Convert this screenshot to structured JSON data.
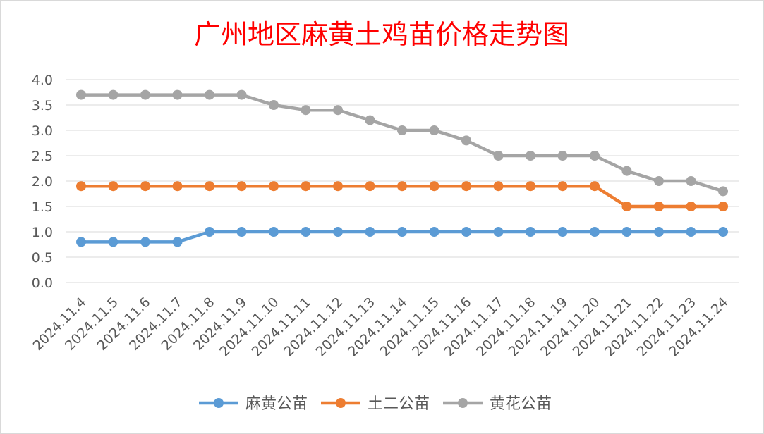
{
  "chart_data": {
    "type": "line",
    "title": "广州地区麻黄土鸡苗价格走势图",
    "title_color": "#ff0000",
    "categories": [
      "2024.11.4",
      "2024.11.5",
      "2024.11.6",
      "2024.11.7",
      "2024.11.8",
      "2024.11.9",
      "2024.11.10",
      "2024.11.11",
      "2024.11.12",
      "2024.11.13",
      "2024.11.14",
      "2024.11.15",
      "2024.11.16",
      "2024.11.17",
      "2024.11.18",
      "2024.11.19",
      "2024.11.20",
      "2024.11.21",
      "2024.11.22",
      "2024.11.23",
      "2024.11.24"
    ],
    "series": [
      {
        "name": "麻黄公苗",
        "color": "#5b9bd5",
        "values": [
          0.8,
          0.8,
          0.8,
          0.8,
          1.0,
          1.0,
          1.0,
          1.0,
          1.0,
          1.0,
          1.0,
          1.0,
          1.0,
          1.0,
          1.0,
          1.0,
          1.0,
          1.0,
          1.0,
          1.0,
          1.0
        ]
      },
      {
        "name": "土二公苗",
        "color": "#ed7d31",
        "values": [
          1.9,
          1.9,
          1.9,
          1.9,
          1.9,
          1.9,
          1.9,
          1.9,
          1.9,
          1.9,
          1.9,
          1.9,
          1.9,
          1.9,
          1.9,
          1.9,
          1.9,
          1.5,
          1.5,
          1.5,
          1.5
        ]
      },
      {
        "name": "黄花公苗",
        "color": "#a5a5a5",
        "values": [
          3.7,
          3.7,
          3.7,
          3.7,
          3.7,
          3.7,
          3.5,
          3.4,
          3.4,
          3.2,
          3.0,
          3.0,
          2.8,
          2.5,
          2.5,
          2.5,
          2.5,
          2.2,
          2.0,
          2.0,
          1.8
        ]
      }
    ],
    "y_ticks": [
      "0.0",
      "0.5",
      "1.0",
      "1.5",
      "2.0",
      "2.5",
      "3.0",
      "3.5",
      "4.0"
    ],
    "ylim": [
      0,
      4
    ],
    "grid": true,
    "legend_position": "bottom"
  }
}
